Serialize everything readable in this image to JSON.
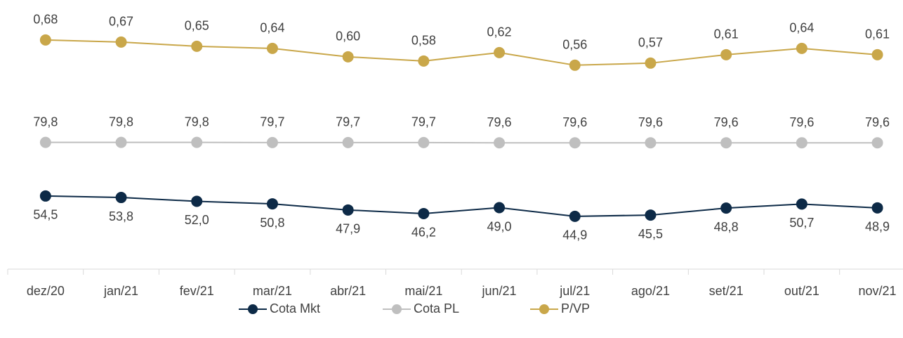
{
  "chart_data": {
    "type": "line",
    "categories": [
      "dez/20",
      "jan/21",
      "fev/21",
      "mar/21",
      "abr/21",
      "mai/21",
      "jun/21",
      "jul/21",
      "ago/21",
      "set/21",
      "out/21",
      "nov/21"
    ],
    "ylim": [
      20,
      140
    ],
    "y2lim": [
      -0.41,
      0.8
    ],
    "legend": "bottom",
    "series": [
      {
        "name": "Cota Mkt",
        "color": "#0d2a47",
        "label_position": "below",
        "values": [
          54.5,
          53.8,
          52.0,
          50.8,
          47.9,
          46.2,
          49.0,
          44.9,
          45.5,
          48.8,
          50.7,
          48.9
        ],
        "value_labels": [
          "54,5",
          "53,8",
          "52,0",
          "50,8",
          "47,9",
          "46,2",
          "49,0",
          "44,9",
          "45,5",
          "48,8",
          "50,7",
          "48,9"
        ]
      },
      {
        "name": "Cota PL",
        "color": "#bfbfbf",
        "label_position": "above",
        "values": [
          79.8,
          79.8,
          79.8,
          79.7,
          79.7,
          79.7,
          79.6,
          79.6,
          79.6,
          79.6,
          79.6,
          79.6
        ],
        "value_labels": [
          "79,8",
          "79,8",
          "79,8",
          "79,7",
          "79,7",
          "79,7",
          "79,6",
          "79,6",
          "79,6",
          "79,6",
          "79,6",
          "79,6"
        ]
      },
      {
        "name": "P/VP",
        "color": "#c9a74a",
        "axis": "y2",
        "label_position": "above",
        "values": [
          0.68,
          0.67,
          0.65,
          0.64,
          0.6,
          0.58,
          0.62,
          0.56,
          0.57,
          0.61,
          0.64,
          0.61
        ],
        "value_labels": [
          "0,68",
          "0,67",
          "0,65",
          "0,64",
          "0,60",
          "0,58",
          "0,62",
          "0,56",
          "0,57",
          "0,61",
          "0,64",
          "0,61"
        ]
      }
    ]
  }
}
